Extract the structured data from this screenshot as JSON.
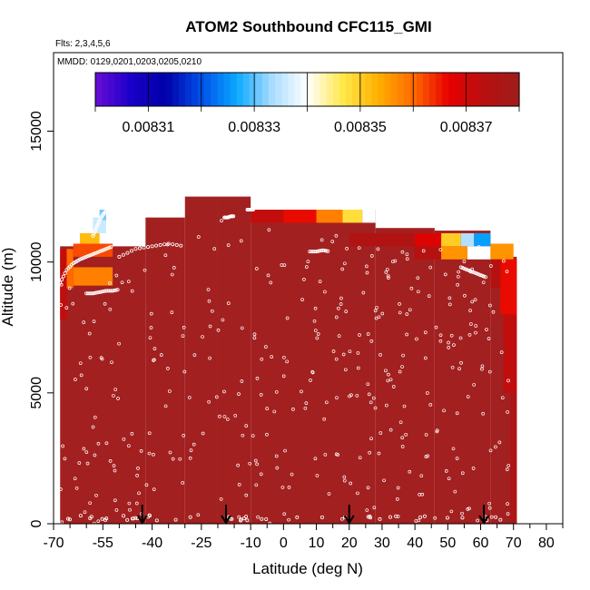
{
  "chart_data": {
    "type": "heatmap",
    "title": "ATOM2 Southbound CFC115_GMI",
    "flights_label": "Flts: 2,3,4,5,6",
    "dates_label": "MMDD: 0129,0201,0203,0205,0210",
    "xlabel": "Latitude (deg N)",
    "ylabel": "Altitude (m)",
    "xlim": [
      -70,
      85
    ],
    "ylim": [
      0,
      18000
    ],
    "xticks": [
      -70,
      -55,
      -40,
      -25,
      -10,
      0,
      10,
      20,
      30,
      40,
      50,
      60,
      70,
      80
    ],
    "xtick_labels": [
      "-70",
      "-55",
      "-40",
      "-25",
      "-10",
      "0",
      "10",
      "20",
      "30",
      "40",
      "50",
      "60",
      "70",
      "80"
    ],
    "xminor_ticks": [
      -65,
      -60,
      -50,
      -45,
      -35,
      -30,
      -20,
      -15,
      -5,
      5,
      15,
      25,
      35,
      45,
      55,
      65,
      75,
      85
    ],
    "yticks": [
      0,
      5000,
      10000,
      15000
    ],
    "ytick_labels": [
      "0",
      "5000",
      "10000",
      "15000"
    ],
    "colorbar": {
      "range": [
        0.0083,
        0.00838
      ],
      "ticks": [
        0.00831,
        0.00833,
        0.00835,
        0.00837
      ],
      "tick_labels": [
        "0.00831",
        "0.00833",
        "0.00835",
        "0.00837"
      ],
      "colors": [
        "#6a0dd6",
        "#1a00c8",
        "#0000a8",
        "#0050e8",
        "#0aa8ff",
        "#a8dcff",
        "#ffffff",
        "#ffe84a",
        "#ffb000",
        "#ff6a00",
        "#e80000",
        "#b81010",
        "#9e1c1c"
      ]
    },
    "background_color": "#a32020",
    "curtain_columns": [
      {
        "x0": -68,
        "x1": -42,
        "top": 10600
      },
      {
        "x0": -42,
        "x1": -30,
        "top": 11700
      },
      {
        "x0": -30,
        "x1": -20,
        "top": 12500
      },
      {
        "x0": -20,
        "x1": -10,
        "top": 12500
      },
      {
        "x0": -10,
        "x1": 28,
        "top": 12000
      },
      {
        "x0": 28,
        "x1": 46,
        "top": 11300
      },
      {
        "x0": 46,
        "x1": 63,
        "top": 11200
      },
      {
        "x0": 63,
        "x1": 69,
        "top": 10700
      },
      {
        "x0": 69,
        "x1": 71,
        "top": 10200
      }
    ],
    "color_patches": [
      {
        "x0": -68,
        "x1": -66,
        "y0": 7800,
        "y1": 10500,
        "value": 0.008372
      },
      {
        "x0": -66,
        "x1": -64,
        "y0": 9000,
        "y1": 10500,
        "value": 0.00836
      },
      {
        "x0": -64,
        "x1": -52,
        "y0": 9100,
        "y1": 9800,
        "value": 0.008358
      },
      {
        "x0": -64,
        "x1": -52,
        "y0": 10200,
        "y1": 10700,
        "value": 0.008362
      },
      {
        "x0": -62,
        "x1": -56,
        "y0": 10700,
        "y1": 11100,
        "value": 0.008352
      },
      {
        "x0": -58,
        "x1": -54,
        "y0": 11100,
        "y1": 11700,
        "value": 0.008336
      },
      {
        "x0": -56,
        "x1": -54,
        "y0": 11600,
        "y1": 12000,
        "value": 0.008331
      },
      {
        "x0": -10,
        "x1": 0,
        "y0": 11500,
        "y1": 12000,
        "value": 0.008372
      },
      {
        "x0": 0,
        "x1": 10,
        "y0": 11500,
        "y1": 12000,
        "value": 0.008366
      },
      {
        "x0": 10,
        "x1": 18,
        "y0": 11500,
        "y1": 12000,
        "value": 0.008358
      },
      {
        "x0": 18,
        "x1": 24,
        "y0": 11500,
        "y1": 12000,
        "value": 0.008348
      },
      {
        "x0": 24,
        "x1": 28,
        "y0": 11500,
        "y1": 12000,
        "value": 0.00834
      },
      {
        "x0": 20,
        "x1": 40,
        "y0": 10600,
        "y1": 11100,
        "value": 0.008375
      },
      {
        "x0": 40,
        "x1": 48,
        "y0": 10600,
        "y1": 11100,
        "value": 0.008368
      },
      {
        "x0": 48,
        "x1": 54,
        "y0": 10600,
        "y1": 11100,
        "value": 0.00835
      },
      {
        "x0": 54,
        "x1": 58,
        "y0": 10600,
        "y1": 11100,
        "value": 0.008334
      },
      {
        "x0": 58,
        "x1": 63,
        "y0": 10600,
        "y1": 11100,
        "value": 0.008326
      },
      {
        "x0": 40,
        "x1": 48,
        "y0": 10100,
        "y1": 10600,
        "value": 0.008374
      },
      {
        "x0": 48,
        "x1": 56,
        "y0": 10100,
        "y1": 10600,
        "value": 0.008356
      },
      {
        "x0": 56,
        "x1": 63,
        "y0": 10100,
        "y1": 10600,
        "value": 0.00834
      },
      {
        "x0": 63,
        "x1": 70,
        "y0": 10100,
        "y1": 10700,
        "value": 0.008356
      },
      {
        "x0": 66,
        "x1": 71,
        "y0": 8000,
        "y1": 10100,
        "value": 0.008366
      },
      {
        "x0": 67,
        "x1": 71,
        "y0": 5000,
        "y1": 8000,
        "value": 0.008372
      },
      {
        "x0": 69,
        "x1": 71,
        "y0": 0,
        "y1": 5000,
        "value": 0.008376
      },
      {
        "x0": 63,
        "x1": 66,
        "y0": 9000,
        "y1": 10100,
        "value": 0.008374
      }
    ],
    "flight_tracks": [
      {
        "lat": [
          -68,
          -66,
          -64,
          -62,
          -60,
          -58,
          -56,
          -54,
          -52
        ],
        "alt": [
          9200,
          9700,
          9950,
          10100,
          10200,
          10300,
          10400,
          10500,
          10600
        ]
      },
      {
        "lat": [
          -58,
          -57,
          -56,
          -55,
          -54,
          -52,
          -50
        ],
        "alt": [
          11000,
          11300,
          11600,
          11800,
          11950,
          12100,
          12300
        ]
      },
      {
        "lat": [
          -60,
          -58,
          -56,
          -54,
          -52,
          -50
        ],
        "alt": [
          8800,
          8800,
          8850,
          8900,
          8900,
          8950
        ]
      },
      {
        "lat": [
          -18,
          -17,
          -16,
          -15
        ],
        "alt": [
          11700,
          11700,
          11750,
          11750
        ]
      },
      {
        "lat": [
          -11,
          -10,
          -9
        ],
        "alt": [
          12000,
          12000,
          12000
        ]
      },
      {
        "lat": [
          -50,
          -45,
          -40,
          -35,
          -30
        ],
        "alt": [
          10200,
          10500,
          10600,
          10700,
          10600
        ]
      },
      {
        "lat": [
          8,
          10,
          12,
          14
        ],
        "alt": [
          10400,
          10400,
          10450,
          10400
        ]
      },
      {
        "lat": [
          54,
          56,
          58,
          60,
          62
        ],
        "alt": [
          9800,
          9700,
          9600,
          9500,
          9400
        ]
      }
    ],
    "takeoff_landing_latitudes": [
      -43,
      -17.5,
      20,
      61
    ]
  }
}
